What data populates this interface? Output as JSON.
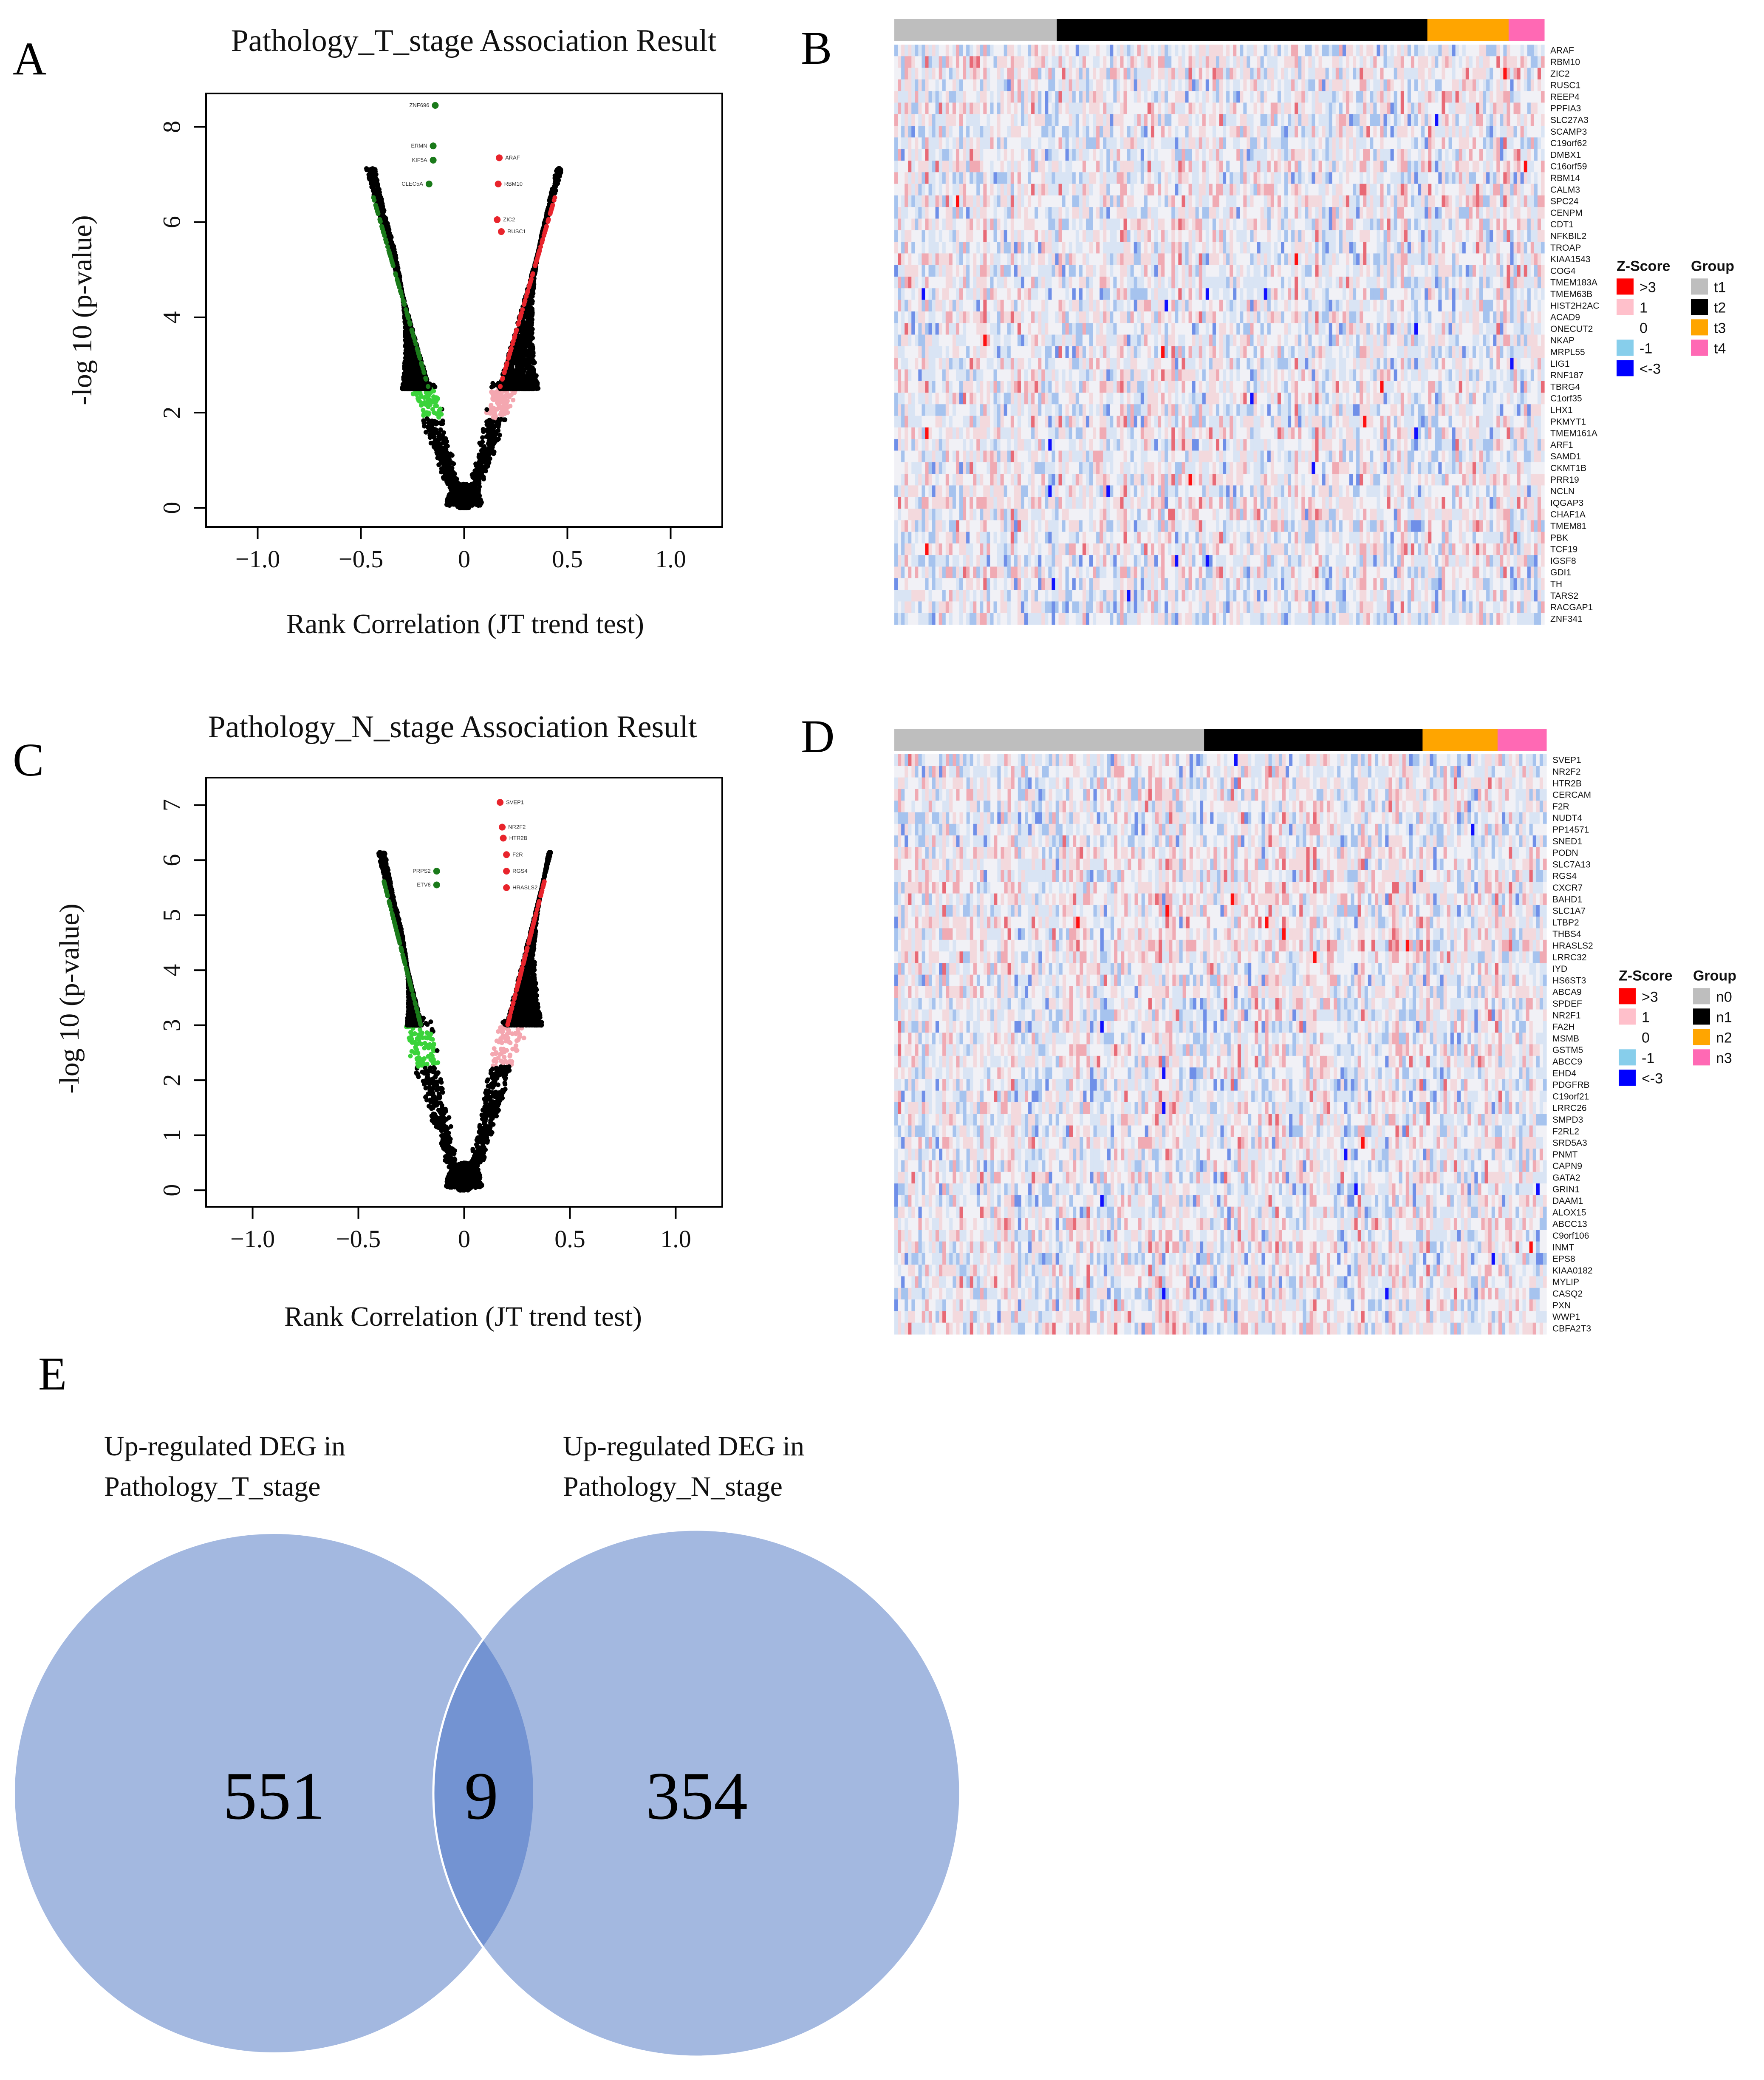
{
  "panels": {
    "a": "A",
    "b": "B",
    "c": "C",
    "d": "D",
    "e": "E"
  },
  "chart_data": [
    {
      "id": "A",
      "type": "scatter",
      "title": "Pathology_T_stage Association Result",
      "xlabel": "Rank Correlation (JT trend test)",
      "ylabel": "-log 10 (p-value)",
      "xlim": [
        -1.25,
        1.25
      ],
      "ylim": [
        -0.4,
        8.7
      ],
      "xticks": [
        -1.0,
        -0.5,
        0,
        0.5,
        1.0
      ],
      "xtick_labels": [
        "−1.0",
        "−0.5",
        "0",
        "0.5",
        "1.0"
      ],
      "yticks": [
        0,
        2,
        4,
        6,
        8
      ],
      "ytick_labels": [
        "0",
        "2",
        "4",
        "6",
        "8"
      ],
      "threshold": 2.5,
      "left_edge": -0.3,
      "right_edge": 0.36,
      "color_neg_sig": "#1a7a1a",
      "color_neg_weak": "#3ad33a",
      "color_pos_sig": "#e8242c",
      "color_pos_weak": "#f4a7b0",
      "color_ns": "#000000",
      "labeled_points": [
        {
          "label": "ZNF696",
          "x": -0.14,
          "y": 8.45,
          "side": "neg"
        },
        {
          "label": "ERMN",
          "x": -0.15,
          "y": 7.6,
          "side": "neg"
        },
        {
          "label": "KIF5A",
          "x": -0.15,
          "y": 7.3,
          "side": "neg"
        },
        {
          "label": "CLEC5A",
          "x": -0.17,
          "y": 6.8,
          "side": "neg"
        },
        {
          "label": "ARAF",
          "x": 0.17,
          "y": 7.35,
          "side": "pos"
        },
        {
          "label": "RBM10",
          "x": 0.165,
          "y": 6.8,
          "side": "pos"
        },
        {
          "label": "ZIC2",
          "x": 0.16,
          "y": 6.05,
          "side": "pos"
        },
        {
          "label": "RUSC1",
          "x": 0.18,
          "y": 5.8,
          "side": "pos"
        }
      ],
      "seed": 11
    },
    {
      "id": "C",
      "type": "scatter",
      "title": "Pathology_N_stage Association Result",
      "xlabel": "Rank Correlation (JT trend test)",
      "ylabel": "-log 10 (p-value)",
      "xlim": [
        -1.22,
        1.22
      ],
      "ylim": [
        -0.3,
        7.5
      ],
      "xticks": [
        -1.0,
        -0.5,
        0,
        0.5,
        1.0
      ],
      "xtick_labels": [
        "−1.0",
        "−0.5",
        "0",
        "0.5",
        "1.0"
      ],
      "yticks": [
        0,
        1,
        2,
        3,
        4,
        5,
        6,
        7
      ],
      "ytick_labels": [
        "0",
        "1",
        "2",
        "3",
        "4",
        "5",
        "6",
        "7"
      ],
      "threshold": 3.0,
      "left_edge": -0.27,
      "right_edge": 0.37,
      "color_neg_sig": "#1a7a1a",
      "color_neg_weak": "#3ad33a",
      "color_pos_sig": "#e8242c",
      "color_pos_weak": "#f4a7b0",
      "color_ns": "#000000",
      "labeled_points": [
        {
          "label": "PRPS2",
          "x": -0.13,
          "y": 5.8,
          "side": "neg"
        },
        {
          "label": "ETV6",
          "x": -0.13,
          "y": 5.55,
          "side": "neg"
        },
        {
          "label": "SVEP1",
          "x": 0.17,
          "y": 7.05,
          "side": "pos"
        },
        {
          "label": "NR2F2",
          "x": 0.18,
          "y": 6.6,
          "side": "pos"
        },
        {
          "label": "HTR2B",
          "x": 0.185,
          "y": 6.4,
          "side": "pos"
        },
        {
          "label": "F2R",
          "x": 0.2,
          "y": 6.1,
          "side": "pos"
        },
        {
          "label": "RGS4",
          "x": 0.2,
          "y": 5.8,
          "side": "pos"
        },
        {
          "label": "HRASLS2",
          "x": 0.2,
          "y": 5.5,
          "side": "pos"
        }
      ],
      "seed": 29
    },
    {
      "id": "B",
      "type": "heatmap",
      "groups": [
        {
          "name": "t1",
          "color": "#bebebe",
          "fraction": 0.25
        },
        {
          "name": "t2",
          "color": "#000000",
          "fraction": 0.57
        },
        {
          "name": "t3",
          "color": "#ffa500",
          "fraction": 0.125
        },
        {
          "name": "t4",
          "color": "#ff69b4",
          "fraction": 0.055
        }
      ],
      "genes": [
        "ARAF",
        "RBM10",
        "ZIC2",
        "RUSC1",
        "REEP4",
        "PPFIA3",
        "SLC27A3",
        "SCAMP3",
        "C19orf62",
        "DMBX1",
        "C16orf59",
        "RBM14",
        "CALM3",
        "SPC24",
        "CENPM",
        "CDT1",
        "NFKBIL2",
        "TROAP",
        "KIAA1543",
        "COG4",
        "TMEM183A",
        "TMEM63B",
        "HIST2H2AC",
        "ACAD9",
        "ONECUT2",
        "NKAP",
        "MRPL55",
        "LIG1",
        "RNF187",
        "TBRG4",
        "C1orf35",
        "LHX1",
        "PKMYT1",
        "TMEM161A",
        "ARF1",
        "SAMD1",
        "CKMT1B",
        "PRR19",
        "NCLN",
        "IQGAP3",
        "CHAF1A",
        "TMEM81",
        "PBK",
        "TCF19",
        "IGSF8",
        "GDI1",
        "TH",
        "TARS2",
        "RACGAP1",
        "ZNF341"
      ],
      "zscore_legend": {
        "title": "Z-Score",
        "labels": [
          ">3",
          "1",
          "0",
          "-1",
          "<-3"
        ],
        "colors": [
          "#ff0000",
          "#ffc0cb",
          "#ffffff",
          "#87ceeb",
          "#0000ff"
        ]
      },
      "group_legend_title": "Group",
      "columns": 190,
      "seed": 5
    },
    {
      "id": "D",
      "type": "heatmap",
      "groups": [
        {
          "name": "n0",
          "color": "#bebebe",
          "fraction": 0.475
        },
        {
          "name": "n1",
          "color": "#000000",
          "fraction": 0.335
        },
        {
          "name": "n2",
          "color": "#ffa500",
          "fraction": 0.115
        },
        {
          "name": "n3",
          "color": "#ff69b4",
          "fraction": 0.075
        }
      ],
      "genes": [
        "SVEP1",
        "NR2F2",
        "HTR2B",
        "CERCAM",
        "F2R",
        "NUDT4",
        "PP14571",
        "SNED1",
        "PODN",
        "SLC7A13",
        "RGS4",
        "CXCR7",
        "BAHD1",
        "SLC1A7",
        "LTBP2",
        "THBS4",
        "HRASLS2",
        "LRRC32",
        "IYD",
        "HS6ST3",
        "ABCA9",
        "SPDEF",
        "NR2F1",
        "FA2H",
        "MSMB",
        "GSTM5",
        "ABCC9",
        "EHD4",
        "PDGFRB",
        "C19orf21",
        "LRRC26",
        "SMPD3",
        "F2RL2",
        "SRD5A3",
        "PNMT",
        "CAPN9",
        "GATA2",
        "GRIN1",
        "DAAM1",
        "ALOX15",
        "ABCC13",
        "C9orf106",
        "INMT",
        "EPS8",
        "KIAA0182",
        "MYLIP",
        "CASQ2",
        "PXN",
        "WWP1",
        "CBFA2T3"
      ],
      "zscore_legend": {
        "title": "Z-Score",
        "labels": [
          ">3",
          "1",
          "0",
          "-1",
          "<-3"
        ],
        "colors": [
          "#ff0000",
          "#ffc0cb",
          "#ffffff",
          "#87ceeb",
          "#0000ff"
        ]
      },
      "group_legend_title": "Group",
      "columns": 190,
      "seed": 17
    },
    {
      "id": "E",
      "type": "venn",
      "sets": [
        {
          "label_line1": "Up-regulated DEG in",
          "label_line2": "Pathology_T_stage",
          "only": 551
        },
        {
          "label_line1": "Up-regulated DEG in",
          "label_line2": "Pathology_N_stage",
          "only": 354
        }
      ],
      "intersection": 9,
      "color_circle": "#a3b8e0",
      "color_overlap": "#7393d2"
    }
  ]
}
